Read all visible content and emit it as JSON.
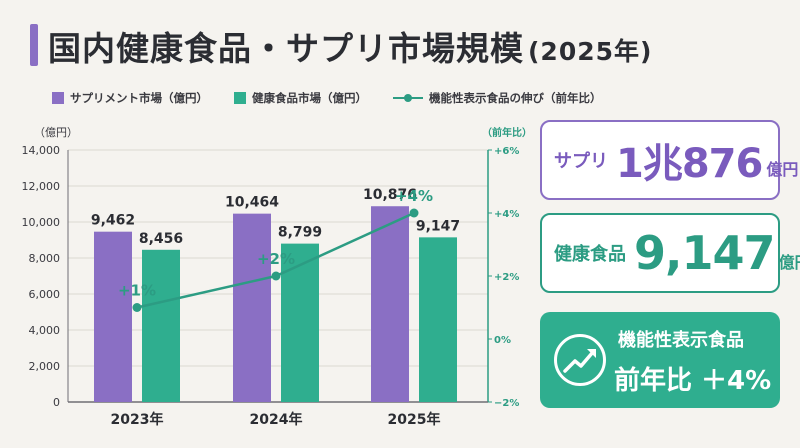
{
  "header": {
    "title": "国内健康食品・サプリ市場規模",
    "year": "(2025年)"
  },
  "legend": {
    "supplement": "サプリメント市場（億円）",
    "health_food": "健康食品市場（億円）",
    "functional": "機能性表示食品の伸び（前年比）"
  },
  "colors": {
    "purple": "#8a6fc4",
    "green": "#2fae8f",
    "teal_line": "#2c9c83"
  },
  "chart_data": {
    "type": "bar",
    "categories": [
      "2023年",
      "2024年",
      "2025年"
    ],
    "series": [
      {
        "name": "サプリメント市場（億円）",
        "values": [
          9462,
          10464,
          10876
        ],
        "labels": [
          "9,462",
          "10,464",
          "10,876"
        ]
      },
      {
        "name": "健康食品市場（億円）",
        "values": [
          8456,
          8799,
          9147
        ],
        "labels": [
          "8,456",
          "8,799",
          "9,147"
        ]
      }
    ],
    "line_series": {
      "name": "機能性表示食品の伸び（前年比）",
      "values": [
        1,
        2,
        4
      ],
      "labels": [
        "+1%",
        "+2%",
        "+4%"
      ],
      "axis": "right"
    },
    "ylabel": "（億円）",
    "y2label": "（前年比）",
    "ylim": [
      0,
      14000
    ],
    "y2lim": [
      -2,
      6
    ],
    "y_ticks": [
      "0",
      "2,000",
      "4,000",
      "6,000",
      "8,000",
      "10,000",
      "12,000",
      "14,000"
    ],
    "y2_ticks": [
      "−2%",
      "0%",
      "+2%",
      "+4%",
      "+6%"
    ],
    "grid": true,
    "legend_position": "top"
  },
  "cards": {
    "supplement": {
      "label": "サプリ",
      "value": "1兆876",
      "unit": "億円"
    },
    "health_food": {
      "label": "健康食品",
      "value": "9,147",
      "unit": "億円"
    },
    "functional": {
      "label": "機能性表示食品",
      "value": "前年比 ＋4%",
      "icon": "trend-up-icon"
    }
  }
}
